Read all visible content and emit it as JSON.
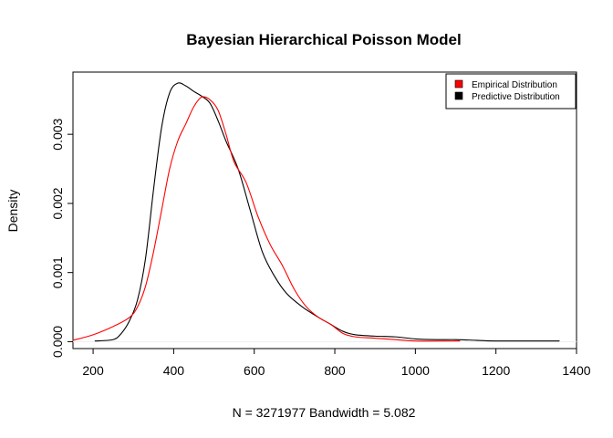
{
  "chart_data": {
    "type": "line",
    "title": "Bayesian Hierarchical Poisson Model",
    "xlabel": "N = 3271977   Bandwidth = 5.082",
    "ylabel": "Density",
    "xlim": [
      150,
      1400
    ],
    "ylim": [
      -0.0001,
      0.0039
    ],
    "x_ticks": [
      200,
      400,
      600,
      800,
      1000,
      1200,
      1400
    ],
    "x_tick_labels": [
      "200",
      "400",
      "600",
      "800",
      "1000",
      "1200",
      "1400"
    ],
    "y_ticks": [
      0,
      0.001,
      0.002,
      0.003
    ],
    "y_tick_labels": [
      "0.000",
      "0.001",
      "0.002",
      "0.003"
    ],
    "grid": false,
    "legend_position": "top-right",
    "series": [
      {
        "name": "Empirical Distribution",
        "color": "#ff0000",
        "points": [
          [
            150,
            2e-05
          ],
          [
            200,
            0.0001
          ],
          [
            250,
            0.00022
          ],
          [
            290,
            0.00035
          ],
          [
            310,
            0.0005
          ],
          [
            330,
            0.0008
          ],
          [
            350,
            0.0013
          ],
          [
            370,
            0.0019
          ],
          [
            390,
            0.0025
          ],
          [
            410,
            0.0029
          ],
          [
            430,
            0.00315
          ],
          [
            450,
            0.0034
          ],
          [
            470,
            0.00354
          ],
          [
            490,
            0.0035
          ],
          [
            510,
            0.00335
          ],
          [
            530,
            0.003
          ],
          [
            550,
            0.0026
          ],
          [
            580,
            0.0023
          ],
          [
            610,
            0.0018
          ],
          [
            640,
            0.0014
          ],
          [
            670,
            0.0011
          ],
          [
            700,
            0.00075
          ],
          [
            730,
            0.0005
          ],
          [
            760,
            0.00035
          ],
          [
            790,
            0.00025
          ],
          [
            820,
            0.00012
          ],
          [
            850,
            7e-05
          ],
          [
            900,
            5e-05
          ],
          [
            950,
            3e-05
          ],
          [
            1000,
            1e-05
          ],
          [
            1110,
            1e-05
          ]
        ]
      },
      {
        "name": "Predictive Distribution",
        "color": "#000000",
        "points": [
          [
            205,
            1e-05
          ],
          [
            250,
            3e-05
          ],
          [
            270,
            0.00012
          ],
          [
            290,
            0.0003
          ],
          [
            310,
            0.0006
          ],
          [
            330,
            0.0012
          ],
          [
            350,
            0.0022
          ],
          [
            370,
            0.0031
          ],
          [
            390,
            0.0036
          ],
          [
            410,
            0.00374
          ],
          [
            430,
            0.0037
          ],
          [
            450,
            0.00362
          ],
          [
            470,
            0.00355
          ],
          [
            490,
            0.00345
          ],
          [
            510,
            0.0032
          ],
          [
            530,
            0.0029
          ],
          [
            560,
            0.0025
          ],
          [
            590,
            0.0019
          ],
          [
            620,
            0.0013
          ],
          [
            650,
            0.00095
          ],
          [
            680,
            0.0007
          ],
          [
            720,
            0.0005
          ],
          [
            760,
            0.00035
          ],
          [
            790,
            0.00025
          ],
          [
            820,
            0.00015
          ],
          [
            850,
            0.0001
          ],
          [
            900,
            8e-05
          ],
          [
            950,
            7e-05
          ],
          [
            1000,
            4e-05
          ],
          [
            1050,
            3e-05
          ],
          [
            1100,
            3e-05
          ],
          [
            1150,
            2e-05
          ],
          [
            1200,
            1e-05
          ],
          [
            1357,
            1e-05
          ]
        ]
      }
    ]
  }
}
